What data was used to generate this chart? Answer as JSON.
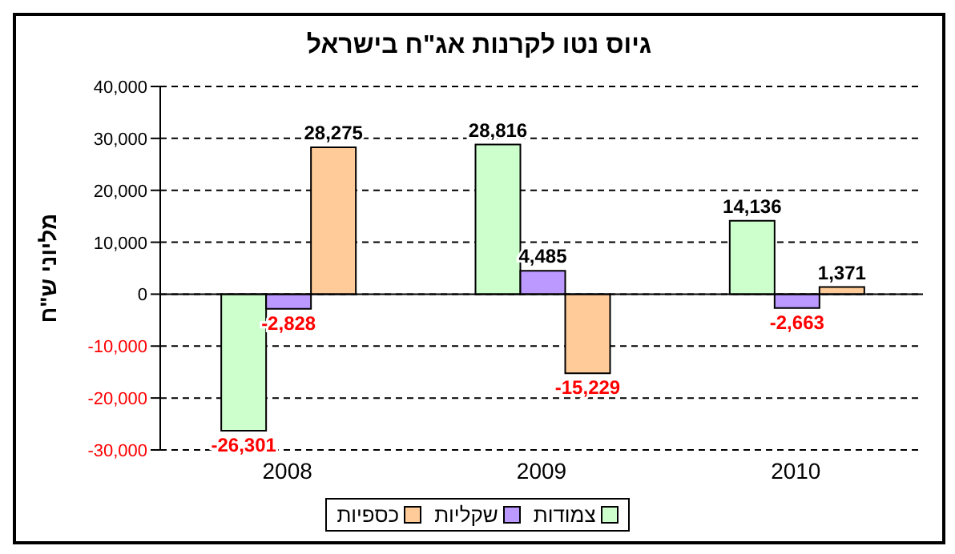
{
  "chart_data": {
    "type": "bar",
    "title": "גיוס נטו לקרנות אג\"ח בישראל",
    "ylabel": "מליוני ש\"ח",
    "categories": [
      "2008",
      "2009",
      "2010"
    ],
    "series": [
      {
        "name": "צמודות",
        "color": "#ccffcc",
        "values": [
          -26301,
          28816,
          14136
        ],
        "value_labels": [
          "-26,301",
          "28,816",
          "14,136"
        ]
      },
      {
        "name": "שקליות",
        "color": "#bb99ff",
        "values": [
          -2828,
          4485,
          -2663
        ],
        "value_labels": [
          "-2,828",
          "4,485",
          "-2,663"
        ]
      },
      {
        "name": "כספיות",
        "color": "#ffcc99",
        "values": [
          28275,
          -15229,
          1371
        ],
        "value_labels": [
          "28,275",
          "-15,229",
          "1,371"
        ]
      }
    ],
    "ylim": [
      -30000,
      40000
    ],
    "yticks": [
      {
        "value": -30000,
        "label": "-30,000"
      },
      {
        "value": -20000,
        "label": "-20,000"
      },
      {
        "value": -10000,
        "label": "-10,000"
      },
      0,
      {
        "value": 10000,
        "label": "10,000"
      },
      {
        "value": 20000,
        "label": "20,000"
      },
      {
        "value": 30000,
        "label": "30,000"
      },
      {
        "value": 40000,
        "label": "40,000"
      }
    ],
    "grid": "y",
    "legend": "bottom"
  }
}
